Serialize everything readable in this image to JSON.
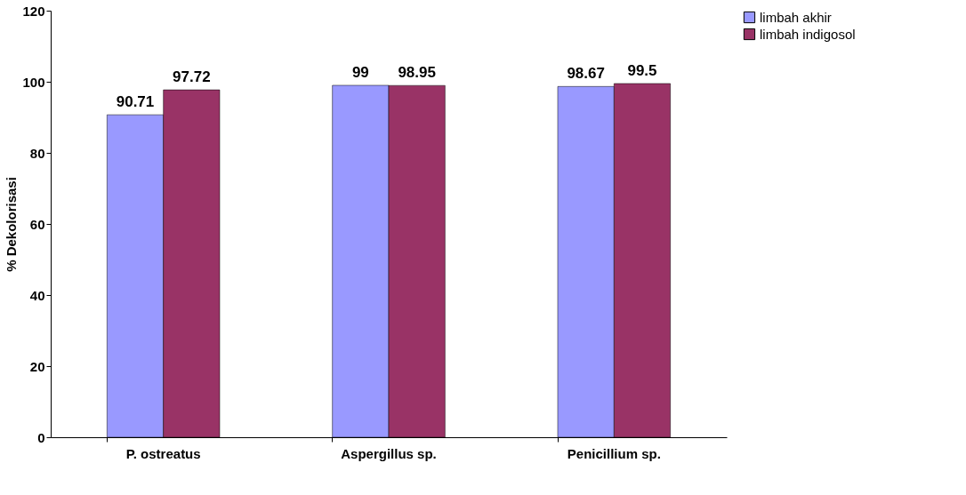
{
  "chart_data": {
    "type": "bar",
    "ylabel": "%  Dekolorisasi",
    "categories": [
      "P. ostreatus",
      "Aspergillus sp.",
      "Penicillium sp."
    ],
    "series": [
      {
        "name": "limbah akhir",
        "color": "#9999ff",
        "values": [
          90.71,
          99,
          98.67
        ]
      },
      {
        "name": "limbah indigosol",
        "color": "#993366",
        "values": [
          97.72,
          98.95,
          99.5
        ]
      }
    ],
    "ylim": [
      0,
      120
    ],
    "yticks": [
      0,
      20,
      40,
      60,
      80,
      100,
      120
    ],
    "grid": false,
    "legend": "right",
    "data_labels": true
  }
}
